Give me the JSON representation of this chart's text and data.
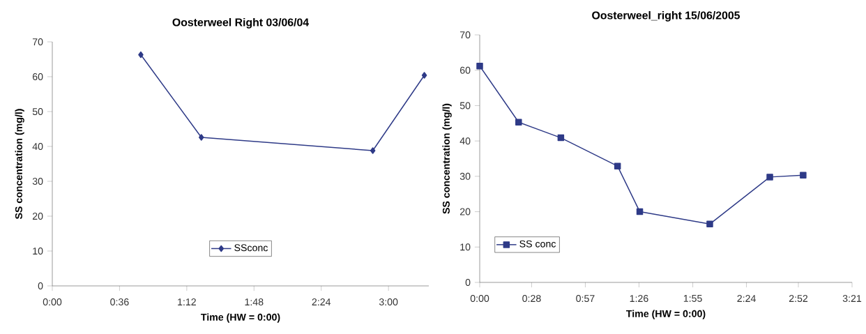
{
  "chart_data": [
    {
      "type": "line",
      "title": "Oosterweel Right 03/06/04",
      "xlabel": "Time (HW = 0:00)",
      "ylabel": "SS concentration (mg/l)",
      "x": [
        0.79,
        1.33,
        2.86,
        3.32
      ],
      "series": [
        {
          "name": "SSconc",
          "color": "#2e3a87",
          "values": [
            66.3,
            42.6,
            38.8,
            60.4
          ]
        }
      ],
      "xlim": [
        0,
        3.36
      ],
      "ylim": [
        0,
        70
      ],
      "xticks": [
        {
          "value": 0,
          "label": "0:00"
        },
        {
          "value": 0.6,
          "label": "0:36"
        },
        {
          "value": 1.2,
          "label": "1:12"
        },
        {
          "value": 1.8,
          "label": "1:48"
        },
        {
          "value": 2.4,
          "label": "2:24"
        },
        {
          "value": 3.0,
          "label": "3:00"
        }
      ],
      "yticks": [
        0,
        10,
        20,
        30,
        40,
        50,
        60,
        70
      ],
      "grid": false,
      "legend": "bottom",
      "marker": "diamond",
      "line_style": "solid"
    },
    {
      "type": "line",
      "title": "Oosterweel_right 15/06/2005",
      "xlabel": "Time (HW = 0:00)",
      "ylabel": "SS concentration (mg/l)",
      "x": [
        0,
        0.35,
        0.73,
        1.24,
        1.44,
        2.07,
        2.61,
        2.91
      ],
      "series": [
        {
          "name": "SS conc",
          "color": "#2e3a87",
          "values": [
            61.2,
            45.3,
            40.9,
            32.9,
            20.0,
            16.5,
            29.8,
            30.3
          ]
        }
      ],
      "xlim": [
        0,
        3.35
      ],
      "ylim": [
        0,
        70
      ],
      "xticks": [
        {
          "value": 0,
          "label": "0:00"
        },
        {
          "value": 0.467,
          "label": "0:28"
        },
        {
          "value": 0.95,
          "label": "0:57"
        },
        {
          "value": 1.433,
          "label": "1:26"
        },
        {
          "value": 1.917,
          "label": "1:55"
        },
        {
          "value": 2.4,
          "label": "2:24"
        },
        {
          "value": 2.867,
          "label": "2:52"
        },
        {
          "value": 3.35,
          "label": "3:21"
        }
      ],
      "yticks": [
        0,
        10,
        20,
        30,
        40,
        50,
        60,
        70
      ],
      "grid": false,
      "legend": "bottom left",
      "marker": "square",
      "line_style": "solid"
    }
  ]
}
